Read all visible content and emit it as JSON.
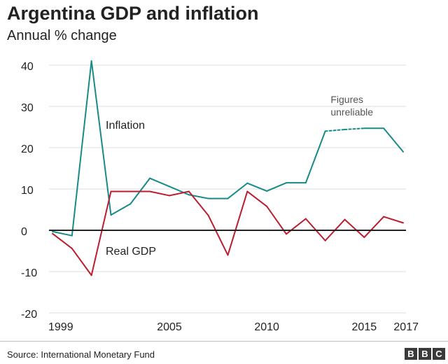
{
  "header": {
    "title": "Argentina GDP and inflation",
    "subtitle": "Annual % change"
  },
  "footer": {
    "source": "Source: International Monetary Fund",
    "logo_letters": [
      "B",
      "B",
      "C"
    ]
  },
  "colors": {
    "inflation": "#168b88",
    "gdp": "#bb1d2f",
    "zero_line": "#222222",
    "grid": "#dcdcdc",
    "text": "#222222",
    "annotation": "#555555"
  },
  "chart_data": {
    "type": "line",
    "title": "Argentina GDP and inflation",
    "subtitle": "Annual % change",
    "xlabel": "",
    "ylabel": "",
    "xlim": [
      1999,
      2017
    ],
    "ylim": [
      -20,
      40
    ],
    "grid": true,
    "x_ticks": [
      {
        "value": 1999,
        "label": "1999"
      },
      {
        "value": 2005,
        "label": "2005"
      },
      {
        "value": 2010,
        "label": "2010"
      },
      {
        "value": 2015,
        "label": "2015"
      },
      {
        "value": 2017,
        "label": "2017"
      }
    ],
    "y_ticks": [
      {
        "value": 40,
        "label": "40"
      },
      {
        "value": 30,
        "label": "30"
      },
      {
        "value": 20,
        "label": "20"
      },
      {
        "value": 10,
        "label": "10"
      },
      {
        "value": 0,
        "label": "0"
      },
      {
        "value": -10,
        "label": "-10"
      },
      {
        "value": -20,
        "label": "-20"
      }
    ],
    "x": [
      1999,
      2000,
      2001,
      2002,
      2003,
      2004,
      2005,
      2006,
      2007,
      2008,
      2009,
      2010,
      2011,
      2012,
      2013,
      2014,
      2015,
      2016,
      2017
    ],
    "series": [
      {
        "name": "Inflation",
        "label": "Inflation",
        "color": "#168b88",
        "values": [
          -0.3,
          -1.3,
          41.0,
          3.7,
          6.4,
          12.6,
          10.6,
          8.6,
          7.7,
          7.7,
          11.4,
          9.5,
          11.5,
          11.5,
          24.0,
          24.4,
          24.7,
          24.7,
          19.0
        ],
        "dashed_from_index": 14,
        "dashed_to_index": 16
      },
      {
        "name": "Real GDP",
        "label": "Real GDP",
        "color": "#bb1d2f",
        "values": [
          -0.8,
          -4.4,
          -10.9,
          9.4,
          9.4,
          9.4,
          8.4,
          9.4,
          3.6,
          -6.0,
          9.4,
          5.8,
          -0.9,
          2.8,
          -2.5,
          2.6,
          -1.7,
          3.3,
          1.8
        ]
      }
    ],
    "annotations": [
      {
        "text_lines": [
          "Figures",
          "unreliable"
        ],
        "anchor_year": 2015.0,
        "anchor_value": 28.5
      }
    ]
  }
}
